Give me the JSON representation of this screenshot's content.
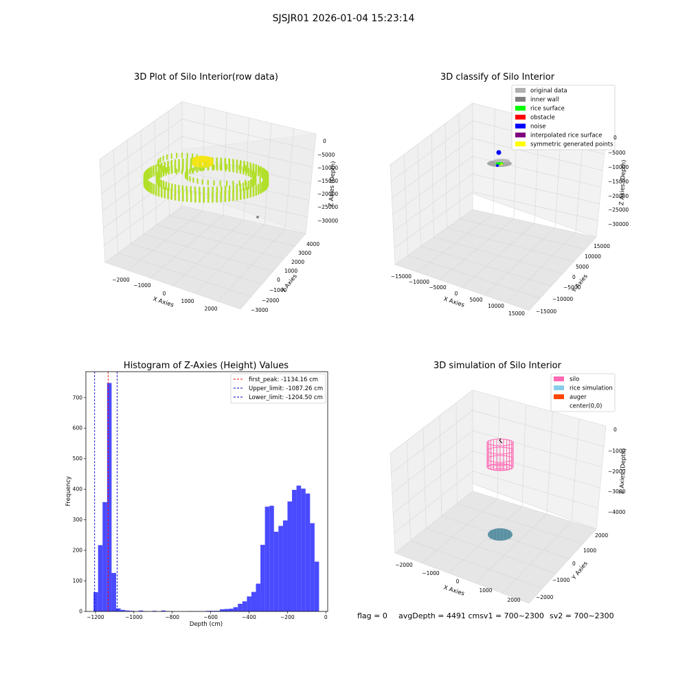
{
  "suptitle": "SJSJR01 2026-01-04 15:23:14",
  "colors": {
    "raw_points": "#b2df2a",
    "raw_top": "#f5e516",
    "hist_bar": "#4a4aff",
    "peak_line": "#ff0000",
    "limit_line": "#0000cc",
    "silo": "#ff69b4",
    "rice": "#87ceeb",
    "auger": "#ff4500"
  },
  "plot_raw": {
    "title": "3D Plot of Silo Interior(row data)",
    "xlabel": "X Axies",
    "ylabel": "Y Axies",
    "zlabel": "Z Axies (Depth)",
    "xticks": [
      "−2000",
      "−1000",
      "0",
      "1000",
      "2000"
    ],
    "yticks": [
      "−3000",
      "−2000",
      "−1000",
      "0",
      "1000",
      "2000",
      "3000",
      "4000"
    ],
    "zticks": [
      "0",
      "−5000",
      "−10000",
      "−15000",
      "−20000",
      "−25000",
      "−30000"
    ]
  },
  "plot_classify": {
    "title": "3D classify of Silo Interior",
    "xlabel": "X Axies",
    "ylabel": "Y Axies",
    "zlabel": "Z Axies (Depth)",
    "xticks": [
      "−15000",
      "−10000",
      "−5000",
      "0",
      "5000",
      "10000",
      "15000"
    ],
    "yticks": [
      "−15000",
      "−10000",
      "−5000",
      "0",
      "5000",
      "10000",
      "15000"
    ],
    "zticks": [
      "0",
      "−5000",
      "−10000",
      "−15000",
      "−20000",
      "−25000",
      "−30000"
    ],
    "legend": [
      {
        "label": "original data",
        "color": "#b0b0b0"
      },
      {
        "label": "inner wall",
        "color": "#808080"
      },
      {
        "label": "rice surface",
        "color": "#00ff00"
      },
      {
        "label": "obstacle",
        "color": "#ff0000"
      },
      {
        "label": "noise",
        "color": "#0000ff"
      },
      {
        "label": "interpolated rice surface",
        "color": "#800080"
      },
      {
        "label": "symmetric generated points",
        "color": "#ffff00"
      }
    ]
  },
  "plot_sim": {
    "title": "3D simulation of Silo Interior",
    "xlabel": "X Axies",
    "ylabel": "Y Axies",
    "zlabel": "Z Axies (Depth)",
    "xticks": [
      "−2000",
      "−1000",
      "0",
      "1000",
      "2000"
    ],
    "yticks": [
      "−2000",
      "−1000",
      "0",
      "1000",
      "2000"
    ],
    "zticks": [
      "0",
      "−1000",
      "−2000",
      "−3000",
      "−4000"
    ],
    "legend": [
      {
        "label": "silo",
        "color": "#ff69b4"
      },
      {
        "label": "rice simulation",
        "color": "#87ceeb"
      },
      {
        "label": "auger",
        "color": "#ff4500"
      },
      {
        "label": "center(0,0)",
        "color": ""
      }
    ]
  },
  "status": {
    "flag": "flag = 0",
    "avg_depth": "avgDepth = 4491 cmsv1 = 700~2300",
    "sv2": "sv2 = 700~2300"
  },
  "chart_data": {
    "type": "bar",
    "title": "Histogram of Z-Axies (Height) Values",
    "xlabel": "Depth (cm)",
    "ylabel": "Frequency",
    "xlim": [
      -1250,
      10
    ],
    "ylim": [
      0,
      785
    ],
    "xticks": [
      -1200,
      -1000,
      -800,
      -600,
      -400,
      -200,
      0
    ],
    "xtick_labels": [
      "−1200",
      "−1000",
      "−800",
      "−600",
      "−400",
      "−200",
      "0"
    ],
    "yticks": [
      0,
      100,
      200,
      300,
      400,
      500,
      600,
      700
    ],
    "bin_width": 23.5,
    "bins": [
      [
        -1210,
        63
      ],
      [
        -1186.5,
        217
      ],
      [
        -1163,
        358
      ],
      [
        -1139.5,
        748
      ],
      [
        -1116,
        126
      ],
      [
        -1092.5,
        10
      ],
      [
        -1069,
        5
      ],
      [
        -1045.5,
        3
      ],
      [
        -1022,
        2
      ],
      [
        -998.5,
        1
      ],
      [
        -975,
        3
      ],
      [
        -951.5,
        1
      ],
      [
        -928,
        0
      ],
      [
        -904.5,
        2
      ],
      [
        -881,
        0
      ],
      [
        -857.5,
        3
      ],
      [
        -834,
        1
      ],
      [
        -810.5,
        1
      ],
      [
        -787,
        0
      ],
      [
        -763.5,
        0
      ],
      [
        -740,
        0
      ],
      [
        -716.5,
        1
      ],
      [
        -693,
        1
      ],
      [
        -669.5,
        1
      ],
      [
        -646,
        1
      ],
      [
        -622.5,
        2
      ],
      [
        -599,
        2
      ],
      [
        -575.5,
        2
      ],
      [
        -552,
        7
      ],
      [
        -528.5,
        8
      ],
      [
        -505,
        9
      ],
      [
        -481.5,
        14
      ],
      [
        -458,
        25
      ],
      [
        -434.5,
        33
      ],
      [
        -411,
        49
      ],
      [
        -387.5,
        64
      ],
      [
        -364,
        91
      ],
      [
        -340.5,
        218
      ],
      [
        -317,
        343
      ],
      [
        -293.5,
        346
      ],
      [
        -270,
        261
      ],
      [
        -246.5,
        280
      ],
      [
        -223,
        298
      ],
      [
        -199.5,
        360
      ],
      [
        -176,
        398
      ],
      [
        -152.5,
        412
      ],
      [
        -129,
        402
      ],
      [
        -105.5,
        386
      ],
      [
        -82,
        289
      ],
      [
        -58.5,
        163
      ]
    ],
    "vlines": [
      {
        "name": "first_peak: -1134.16 cm",
        "x": -1134.16,
        "style": "red"
      },
      {
        "name": "Upper_limit: -1087.26 cm",
        "x": -1087.26,
        "style": "blue"
      },
      {
        "name": "Lower_limit: -1204.50 cm",
        "x": -1204.5,
        "style": "blue"
      }
    ],
    "legend_position": "upper right"
  }
}
